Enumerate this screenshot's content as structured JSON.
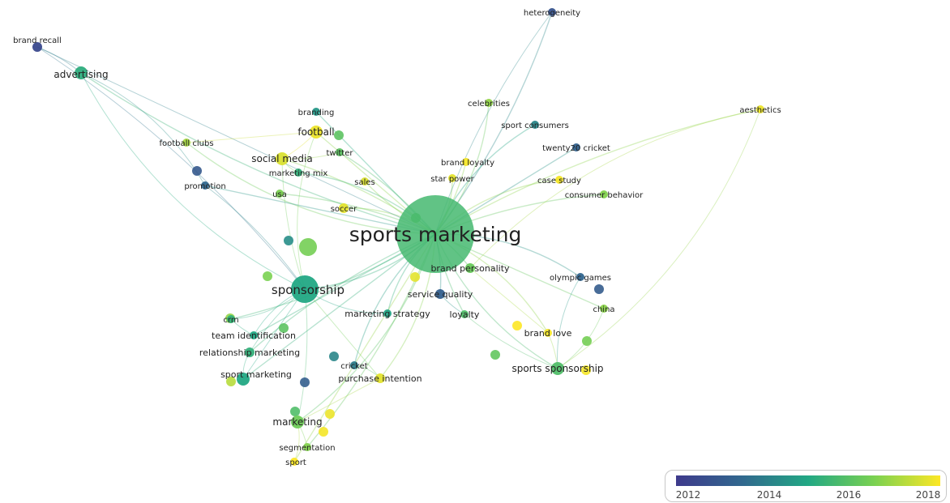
{
  "legend": {
    "ticks": [
      "2012",
      "2014",
      "2016",
      "2018"
    ],
    "colors": [
      "#3e3a8c",
      "#31688e",
      "#22a884",
      "#7ad151",
      "#fde725"
    ]
  },
  "nodes": [
    {
      "id": "sports-marketing",
      "label": "sports marketing",
      "weight": 100,
      "year": 2015.6
    },
    {
      "id": "sponsorship",
      "label": "sponsorship",
      "weight": 30,
      "year": 2015.0
    },
    {
      "id": "advertising",
      "label": "advertising",
      "weight": 14,
      "year": 2015.2
    },
    {
      "id": "football",
      "label": "football",
      "weight": 14,
      "year": 2017.8
    },
    {
      "id": "social-media",
      "label": "social media",
      "weight": 14,
      "year": 2017.6
    },
    {
      "id": "sports-sponsorship",
      "label": "sports sponsorship",
      "weight": 14,
      "year": 2015.8
    },
    {
      "id": "marketing",
      "label": "marketing",
      "weight": 12,
      "year": 2016.3
    },
    {
      "id": "brand-personality",
      "label": "brand personality",
      "weight": 10,
      "year": 2016.2
    },
    {
      "id": "sport-marketing",
      "label": "sport marketing",
      "weight": 12,
      "year": 2015.0
    },
    {
      "id": "brand-recall",
      "label": "brand recall",
      "weight": 8,
      "year": 2012.5
    },
    {
      "id": "heterogeneity",
      "label": "heterogeneity",
      "weight": 7,
      "year": 2012.8
    },
    {
      "id": "celebrities",
      "label": "celebrities",
      "weight": 5,
      "year": 2016.8
    },
    {
      "id": "sport-consumers",
      "label": "sport consumers",
      "weight": 6,
      "year": 2014.2
    },
    {
      "id": "aesthetics",
      "label": "aesthetics",
      "weight": 7,
      "year": 2017.8
    },
    {
      "id": "twenty20-cricket",
      "label": "twenty20 cricket",
      "weight": 6,
      "year": 2013.3
    },
    {
      "id": "brand-loyalty",
      "label": "brand loyalty",
      "weight": 7,
      "year": 2017.9
    },
    {
      "id": "star-power",
      "label": "star power",
      "weight": 6,
      "year": 2017.7
    },
    {
      "id": "case-study",
      "label": "case study",
      "weight": 6,
      "year": 2017.9
    },
    {
      "id": "consumer-behavior",
      "label": "consumer behavior",
      "weight": 5,
      "year": 2016.6
    },
    {
      "id": "branding",
      "label": "branding",
      "weight": 5,
      "year": 2014.6
    },
    {
      "id": "twitter",
      "label": "twitter",
      "weight": 6,
      "year": 2016.0
    },
    {
      "id": "marketing-mix",
      "label": "marketing mix",
      "weight": 6,
      "year": 2015.3
    },
    {
      "id": "football-clubs",
      "label": "football clubs",
      "weight": 5,
      "year": 2017.0
    },
    {
      "id": "sales",
      "label": "sales",
      "weight": 6,
      "year": 2017.6
    },
    {
      "id": "promotion",
      "label": "promotion",
      "weight": 6,
      "year": 2013.5
    },
    {
      "id": "usa",
      "label": "usa",
      "weight": 5,
      "year": 2016.5
    },
    {
      "id": "soccer",
      "label": "soccer",
      "weight": 8,
      "year": 2017.7
    },
    {
      "id": "olympic-games",
      "label": "olympic games",
      "weight": 7,
      "year": 2013.4
    },
    {
      "id": "service-quality",
      "label": "service quality",
      "weight": 8,
      "year": 2013.2
    },
    {
      "id": "china",
      "label": "china",
      "weight": 6,
      "year": 2016.7
    },
    {
      "id": "loyalty",
      "label": "loyalty",
      "weight": 7,
      "year": 2015.8
    },
    {
      "id": "marketing-strategy",
      "label": "marketing strategy",
      "weight": 7,
      "year": 2014.9
    },
    {
      "id": "brand-love",
      "label": "brand love",
      "weight": 7,
      "year": 2017.9
    },
    {
      "id": "crm",
      "label": "crm",
      "weight": 6,
      "year": 2015.3
    },
    {
      "id": "team-identification",
      "label": "team identification",
      "weight": 7,
      "year": 2015.0
    },
    {
      "id": "relationship-marketing",
      "label": "relationship marketing",
      "weight": 8,
      "year": 2015.3
    },
    {
      "id": "cricket",
      "label": "cricket",
      "weight": 7,
      "year": 2014.0
    },
    {
      "id": "purchase-intention",
      "label": "purchase intention",
      "weight": 8,
      "year": 2017.7
    },
    {
      "id": "segmentation",
      "label": "segmentation",
      "weight": 5,
      "year": 2016.6
    },
    {
      "id": "sport",
      "label": "sport",
      "weight": 6,
      "year": 2018.0
    }
  ],
  "extra_nodes": [
    {
      "year": 2016.4
    },
    {
      "year": 2014.4
    },
    {
      "year": 2016.5
    },
    {
      "year": 2013.0
    },
    {
      "year": 2016.2
    },
    {
      "year": 2014.2
    },
    {
      "year": 2013.2
    },
    {
      "year": 2017.7
    },
    {
      "year": 2016.1
    },
    {
      "year": 2016.4
    },
    {
      "year": 2016.0
    },
    {
      "year": 2017.9
    },
    {
      "year": 2017.8
    },
    {
      "year": 2013.1
    },
    {
      "year": 2015.8
    },
    {
      "year": 2017.2
    },
    {
      "year": 2016.8
    },
    {
      "year": 2016.0
    },
    {
      "year": 2018.0
    },
    {
      "year": 2017.9
    }
  ],
  "edges": [
    [
      "sports-marketing",
      "sponsorship"
    ],
    [
      "sports-marketing",
      "advertising"
    ],
    [
      "sports-marketing",
      "football"
    ],
    [
      "sports-marketing",
      "social-media"
    ],
    [
      "sports-marketing",
      "sports-sponsorship"
    ],
    [
      "sports-marketing",
      "marketing"
    ],
    [
      "sports-marketing",
      "brand-personality"
    ],
    [
      "sports-marketing",
      "sport-marketing"
    ],
    [
      "sports-marketing",
      "heterogeneity"
    ],
    [
      "sports-marketing",
      "celebrities"
    ],
    [
      "sports-marketing",
      "sport-consumers"
    ],
    [
      "sports-marketing",
      "aesthetics"
    ],
    [
      "sports-marketing",
      "twenty20-cricket"
    ],
    [
      "sports-marketing",
      "brand-loyalty"
    ],
    [
      "sports-marketing",
      "star-power"
    ],
    [
      "sports-marketing",
      "case-study"
    ],
    [
      "sports-marketing",
      "consumer-behavior"
    ],
    [
      "sports-marketing",
      "branding"
    ],
    [
      "sports-marketing",
      "twitter"
    ],
    [
      "sports-marketing",
      "marketing-mix"
    ],
    [
      "sports-marketing",
      "football-clubs"
    ],
    [
      "sports-marketing",
      "sales"
    ],
    [
      "sports-marketing",
      "promotion"
    ],
    [
      "sports-marketing",
      "usa"
    ],
    [
      "sports-marketing",
      "soccer"
    ],
    [
      "sports-marketing",
      "olympic-games"
    ],
    [
      "sports-marketing",
      "service-quality"
    ],
    [
      "sports-marketing",
      "china"
    ],
    [
      "sports-marketing",
      "loyalty"
    ],
    [
      "sports-marketing",
      "marketing-strategy"
    ],
    [
      "sports-marketing",
      "brand-love"
    ],
    [
      "sports-marketing",
      "crm"
    ],
    [
      "sports-marketing",
      "team-identification"
    ],
    [
      "sports-marketing",
      "relationship-marketing"
    ],
    [
      "sports-marketing",
      "cricket"
    ],
    [
      "sports-marketing",
      "purchase-intention"
    ],
    [
      "sports-marketing",
      "segmentation"
    ],
    [
      "sports-marketing",
      "sport"
    ],
    [
      "advertising",
      "brand-recall"
    ],
    [
      "advertising",
      "sponsorship"
    ],
    [
      "advertising",
      "promotion"
    ],
    [
      "brand-recall",
      "sponsorship"
    ],
    [
      "brand-recall",
      "sports-marketing"
    ],
    [
      "heterogeneity",
      "sports-marketing"
    ],
    [
      "aesthetics",
      "brand-personality"
    ],
    [
      "aesthetics",
      "sports-sponsorship"
    ],
    [
      "sponsorship",
      "marketing"
    ],
    [
      "sponsorship",
      "sport-marketing"
    ],
    [
      "sponsorship",
      "relationship-marketing"
    ],
    [
      "sponsorship",
      "team-identification"
    ],
    [
      "sponsorship",
      "football"
    ],
    [
      "sponsorship",
      "social-media"
    ],
    [
      "sponsorship",
      "purchase-intention"
    ],
    [
      "sponsorship",
      "promotion"
    ],
    [
      "sponsorship",
      "marketing-strategy"
    ],
    [
      "sponsorship",
      "crm"
    ],
    [
      "football",
      "social-media"
    ],
    [
      "football",
      "football-clubs"
    ],
    [
      "social-media",
      "twitter"
    ],
    [
      "social-media",
      "marketing-mix"
    ],
    [
      "marketing",
      "sport"
    ],
    [
      "marketing",
      "segmentation"
    ],
    [
      "marketing",
      "purchase-intention"
    ],
    [
      "sports-sponsorship",
      "brand-love"
    ],
    [
      "sports-sponsorship",
      "china"
    ],
    [
      "sports-sponsorship",
      "olympic-games"
    ],
    [
      "sports-sponsorship",
      "loyalty"
    ],
    [
      "brand-personality",
      "brand-love"
    ],
    [
      "service-quality",
      "loyalty"
    ],
    [
      "purchase-intention",
      "cricket"
    ],
    [
      "sport-marketing",
      "relationship-marketing"
    ],
    [
      "team-identification",
      "crm"
    ]
  ]
}
